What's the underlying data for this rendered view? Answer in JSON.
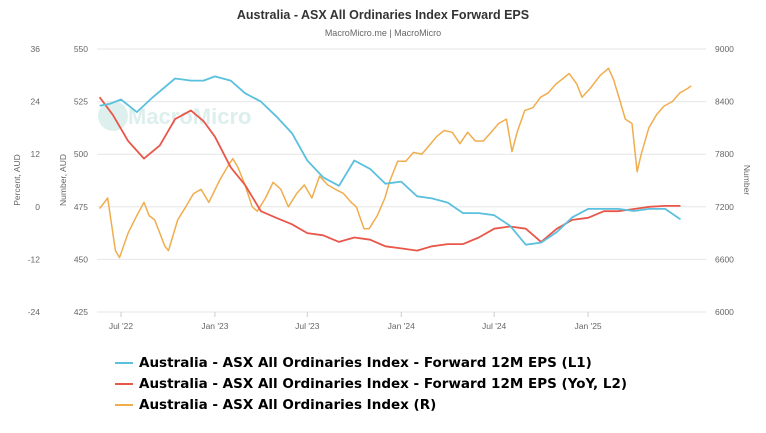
{
  "chart_data": {
    "type": "line",
    "title": "Australia - ASX All Ordinaries Index Forward EPS",
    "subtitle": "MacroMicro.me | MacroMicro",
    "watermark": "MacroMicro",
    "x_range": [
      "2022-05-15",
      "2025-08-20"
    ],
    "x_ticks": [
      {
        "date": "2022-07-01",
        "label": "Jul '22"
      },
      {
        "date": "2023-01-01",
        "label": "Jan '23"
      },
      {
        "date": "2023-07-01",
        "label": "Jul '23"
      },
      {
        "date": "2024-01-01",
        "label": "Jan '24"
      },
      {
        "date": "2024-07-01",
        "label": "Jul '24"
      },
      {
        "date": "2025-01-01",
        "label": "Jan '25"
      }
    ],
    "axes": {
      "l1": {
        "title": "Number, AUD",
        "min": 425,
        "max": 550,
        "ticks": [
          425,
          450,
          475,
          500,
          525,
          550
        ],
        "grid": true
      },
      "l2": {
        "title": "Percent, AUD",
        "min": -24,
        "max": 36,
        "ticks": [
          -24,
          -12,
          0,
          12,
          24,
          36
        ]
      },
      "r": {
        "title": "Number",
        "min": 6000,
        "max": 9000,
        "ticks": [
          6000,
          6600,
          7200,
          7800,
          8400,
          9000
        ]
      }
    },
    "series": [
      {
        "name": "Australia - ASX All Ordinaries Index - Forward 12M EPS (L1)",
        "axis": "l1",
        "color": "#5bc0de",
        "points": [
          [
            "2022-05-20",
            523
          ],
          [
            "2022-06-10",
            524
          ],
          [
            "2022-07-01",
            526
          ],
          [
            "2022-08-01",
            520
          ],
          [
            "2022-09-01",
            527
          ],
          [
            "2022-10-15",
            536
          ],
          [
            "2022-11-15",
            535
          ],
          [
            "2022-12-10",
            535
          ],
          [
            "2023-01-01",
            537
          ],
          [
            "2023-02-01",
            535
          ],
          [
            "2023-03-01",
            529
          ],
          [
            "2023-04-01",
            525
          ],
          [
            "2023-05-01",
            518
          ],
          [
            "2023-06-01",
            510
          ],
          [
            "2023-07-01",
            497
          ],
          [
            "2023-08-01",
            489
          ],
          [
            "2023-09-01",
            485
          ],
          [
            "2023-10-01",
            497
          ],
          [
            "2023-11-01",
            493
          ],
          [
            "2023-12-01",
            486
          ],
          [
            "2024-01-01",
            487
          ],
          [
            "2024-02-01",
            480
          ],
          [
            "2024-03-01",
            479
          ],
          [
            "2024-04-01",
            477
          ],
          [
            "2024-05-01",
            472
          ],
          [
            "2024-06-01",
            472
          ],
          [
            "2024-07-01",
            471
          ],
          [
            "2024-08-01",
            466
          ],
          [
            "2024-09-01",
            457
          ],
          [
            "2024-10-01",
            458
          ],
          [
            "2024-11-01",
            463
          ],
          [
            "2024-12-01",
            470
          ],
          [
            "2025-01-01",
            474
          ],
          [
            "2025-02-01",
            474
          ],
          [
            "2025-03-01",
            474
          ],
          [
            "2025-04-01",
            473
          ],
          [
            "2025-05-01",
            474
          ],
          [
            "2025-06-01",
            474
          ],
          [
            "2025-07-01",
            469
          ]
        ]
      },
      {
        "name": "Australia - ASX All Ordinaries Index - Forward 12M EPS (YoY, L2)",
        "axis": "l2",
        "color": "#e8574a",
        "points": [
          [
            "2022-05-20",
            25
          ],
          [
            "2022-06-15",
            21
          ],
          [
            "2022-07-15",
            15
          ],
          [
            "2022-08-15",
            11
          ],
          [
            "2022-09-15",
            14
          ],
          [
            "2022-10-15",
            20
          ],
          [
            "2022-11-15",
            22
          ],
          [
            "2022-12-10",
            19.5
          ],
          [
            "2023-01-01",
            16
          ],
          [
            "2023-02-01",
            9
          ],
          [
            "2023-03-01",
            5
          ],
          [
            "2023-04-01",
            -1
          ],
          [
            "2023-05-01",
            -2.5
          ],
          [
            "2023-06-01",
            -4
          ],
          [
            "2023-07-01",
            -6
          ],
          [
            "2023-08-01",
            -6.5
          ],
          [
            "2023-09-01",
            -8
          ],
          [
            "2023-10-01",
            -7
          ],
          [
            "2023-11-01",
            -7.5
          ],
          [
            "2023-12-01",
            -9
          ],
          [
            "2024-01-01",
            -9.5
          ],
          [
            "2024-02-01",
            -10
          ],
          [
            "2024-03-01",
            -9
          ],
          [
            "2024-04-01",
            -8.5
          ],
          [
            "2024-05-01",
            -8.5
          ],
          [
            "2024-06-01",
            -7
          ],
          [
            "2024-07-01",
            -5
          ],
          [
            "2024-08-01",
            -4.5
          ],
          [
            "2024-09-01",
            -5
          ],
          [
            "2024-10-01",
            -8
          ],
          [
            "2024-11-01",
            -5
          ],
          [
            "2024-12-01",
            -3
          ],
          [
            "2025-01-01",
            -2.5
          ],
          [
            "2025-02-01",
            -1
          ],
          [
            "2025-03-01",
            -1
          ],
          [
            "2025-04-01",
            -0.5
          ],
          [
            "2025-05-01",
            0
          ],
          [
            "2025-06-01",
            0.2
          ],
          [
            "2025-07-01",
            0.2
          ]
        ]
      },
      {
        "name": "Australia - ASX All Ordinaries Index (R)",
        "axis": "r",
        "color": "#f0ad4e",
        "points": [
          [
            "2022-05-20",
            7180
          ],
          [
            "2022-06-05",
            7300
          ],
          [
            "2022-06-20",
            6700
          ],
          [
            "2022-06-28",
            6620
          ],
          [
            "2022-07-15",
            6900
          ],
          [
            "2022-08-01",
            7100
          ],
          [
            "2022-08-15",
            7250
          ],
          [
            "2022-08-25",
            7100
          ],
          [
            "2022-09-05",
            7050
          ],
          [
            "2022-09-25",
            6750
          ],
          [
            "2022-10-02",
            6700
          ],
          [
            "2022-10-20",
            7050
          ],
          [
            "2022-11-05",
            7200
          ],
          [
            "2022-11-20",
            7350
          ],
          [
            "2022-12-05",
            7400
          ],
          [
            "2022-12-20",
            7250
          ],
          [
            "2023-01-10",
            7500
          ],
          [
            "2023-01-25",
            7650
          ],
          [
            "2023-02-05",
            7750
          ],
          [
            "2023-02-15",
            7650
          ],
          [
            "2023-03-01",
            7450
          ],
          [
            "2023-03-15",
            7200
          ],
          [
            "2023-03-25",
            7150
          ],
          [
            "2023-04-10",
            7300
          ],
          [
            "2023-04-25",
            7480
          ],
          [
            "2023-05-10",
            7400
          ],
          [
            "2023-05-25",
            7200
          ],
          [
            "2023-06-10",
            7350
          ],
          [
            "2023-06-25",
            7450
          ],
          [
            "2023-07-10",
            7300
          ],
          [
            "2023-07-25",
            7550
          ],
          [
            "2023-08-10",
            7450
          ],
          [
            "2023-08-25",
            7400
          ],
          [
            "2023-09-10",
            7350
          ],
          [
            "2023-09-25",
            7250
          ],
          [
            "2023-10-05",
            7200
          ],
          [
            "2023-10-20",
            6950
          ],
          [
            "2023-10-30",
            6950
          ],
          [
            "2023-11-15",
            7100
          ],
          [
            "2023-11-30",
            7300
          ],
          [
            "2023-12-10",
            7500
          ],
          [
            "2023-12-25",
            7720
          ],
          [
            "2024-01-10",
            7720
          ],
          [
            "2024-01-25",
            7820
          ],
          [
            "2024-02-10",
            7800
          ],
          [
            "2024-02-25",
            7900
          ],
          [
            "2024-03-10",
            8000
          ],
          [
            "2024-03-25",
            8070
          ],
          [
            "2024-04-10",
            8050
          ],
          [
            "2024-04-25",
            7920
          ],
          [
            "2024-05-10",
            8050
          ],
          [
            "2024-05-25",
            7950
          ],
          [
            "2024-06-10",
            7950
          ],
          [
            "2024-06-25",
            8050
          ],
          [
            "2024-07-10",
            8150
          ],
          [
            "2024-07-25",
            8200
          ],
          [
            "2024-08-05",
            7830
          ],
          [
            "2024-08-15",
            8050
          ],
          [
            "2024-08-30",
            8300
          ],
          [
            "2024-09-15",
            8330
          ],
          [
            "2024-09-30",
            8450
          ],
          [
            "2024-10-15",
            8500
          ],
          [
            "2024-10-30",
            8600
          ],
          [
            "2024-11-10",
            8650
          ],
          [
            "2024-11-25",
            8720
          ],
          [
            "2024-12-10",
            8600
          ],
          [
            "2024-12-20",
            8450
          ],
          [
            "2025-01-05",
            8550
          ],
          [
            "2025-01-25",
            8700
          ],
          [
            "2025-02-10",
            8780
          ],
          [
            "2025-02-20",
            8650
          ],
          [
            "2025-03-05",
            8400
          ],
          [
            "2025-03-15",
            8200
          ],
          [
            "2025-03-28",
            8150
          ],
          [
            "2025-04-07",
            7600
          ],
          [
            "2025-04-15",
            7800
          ],
          [
            "2025-04-30",
            8100
          ],
          [
            "2025-05-15",
            8250
          ],
          [
            "2025-05-30",
            8350
          ],
          [
            "2025-06-15",
            8400
          ],
          [
            "2025-06-30",
            8500
          ],
          [
            "2025-07-15",
            8550
          ],
          [
            "2025-07-22",
            8580
          ]
        ]
      }
    ]
  }
}
